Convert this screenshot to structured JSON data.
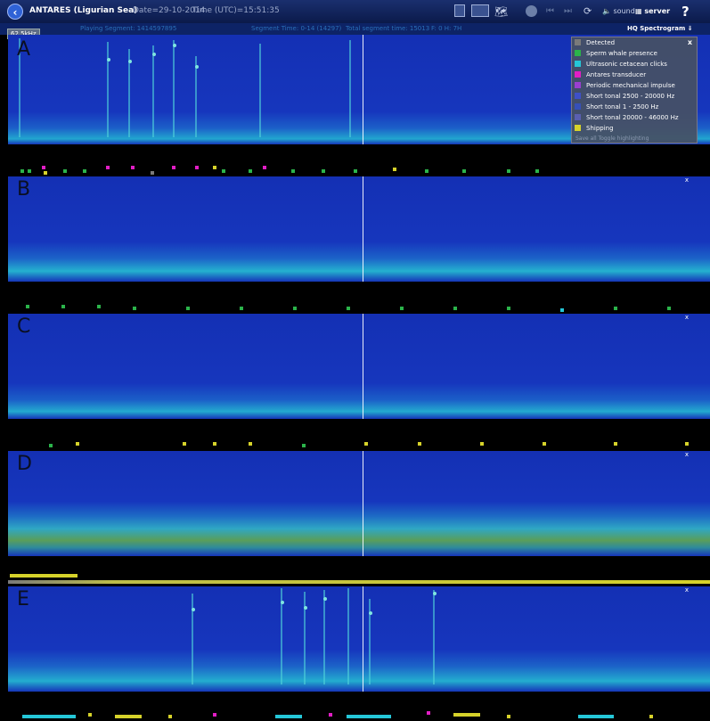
{
  "header": {
    "title": "ANTARES (Ligurian Sea)",
    "date": "Date=29-10-2014",
    "time": "Time (UTC)=15:51:35",
    "sound_label": "sound",
    "server_label": "server",
    "help_label": "?"
  },
  "subheader": {
    "playing": "Playing Segment: 1414597895",
    "segment_time": "Segment Time: 0-14 (14297)",
    "total": "Total segment time: 15013",
    "fps": "F: 0 H: 7H"
  },
  "frequency_label": "62.5kHz",
  "hq_spectrogram": "HQ Spectrogram",
  "panels": [
    {
      "id": "A",
      "close": "x"
    },
    {
      "id": "B",
      "close": "x"
    },
    {
      "id": "C",
      "close": "x"
    },
    {
      "id": "D",
      "close": "x"
    },
    {
      "id": "E",
      "close": "x"
    }
  ],
  "legend": {
    "close": "x",
    "items": [
      {
        "label": "Detected",
        "color": "#7a7a7a"
      },
      {
        "label": "Sperm whale presence",
        "color": "#2bb34a"
      },
      {
        "label": "Ultrasonic cetacean clicks",
        "color": "#25c7d8"
      },
      {
        "label": "Antares transducer",
        "color": "#e21ec5"
      },
      {
        "label": "Periodic mechanical impulse",
        "color": "#9a3fd0"
      },
      {
        "label": "Short tonal 2500 - 20000 Hz",
        "color": "#3e50c8"
      },
      {
        "label": "Short tonal 1 - 2500 Hz",
        "color": "#3650b8"
      },
      {
        "label": "Short tonal 20000 - 46000 Hz",
        "color": "#5a5fb0"
      },
      {
        "label": "Shipping",
        "color": "#d6d22a"
      }
    ],
    "footer": "Save all  Toggle highlighting"
  },
  "colors": {
    "spectrogram_base": "#1634b8",
    "noise_band": "#22b5c9",
    "ship_band": "#6aa838"
  }
}
